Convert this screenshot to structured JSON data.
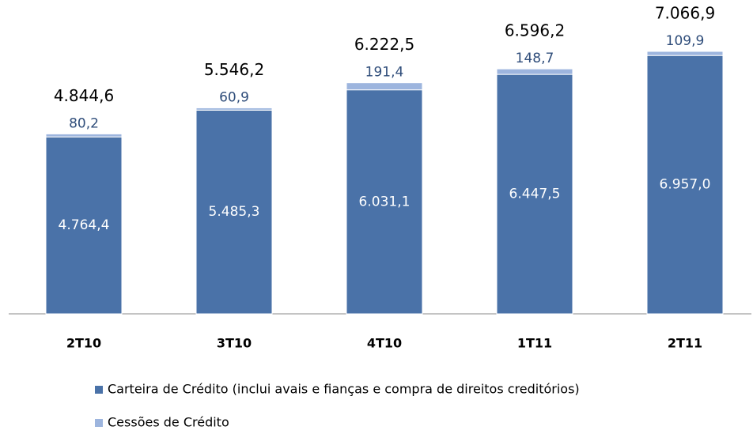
{
  "chart_data": {
    "type": "stacked_bar",
    "categories": [
      "2T10",
      "3T10",
      "4T10",
      "1T11",
      "2T11"
    ],
    "series": [
      {
        "name": "Carteira de Crédito (inclui avais e fianças e compra de direitos creditórios)",
        "color": "#4a72a8",
        "values": [
          4764.4,
          5485.3,
          6031.1,
          6447.5,
          6957.0
        ],
        "value_labels": [
          "4.764,4",
          "5.485,3",
          "6.031,1",
          "6.447,5",
          "6.957,0"
        ]
      },
      {
        "name": "Cessões de Crédito",
        "color": "#9db5de",
        "values": [
          80.2,
          60.9,
          191.4,
          148.7,
          109.9
        ],
        "value_labels": [
          "80,2",
          "60,9",
          "191,4",
          "148,7",
          "109,9"
        ]
      }
    ],
    "totals": [
      4844.6,
      5546.2,
      6222.5,
      6596.2,
      7066.9
    ],
    "total_labels": [
      "4.844,6",
      "5.546,2",
      "6.222,5",
      "6.596,2",
      "7.066,9"
    ],
    "legend": "bottom"
  }
}
